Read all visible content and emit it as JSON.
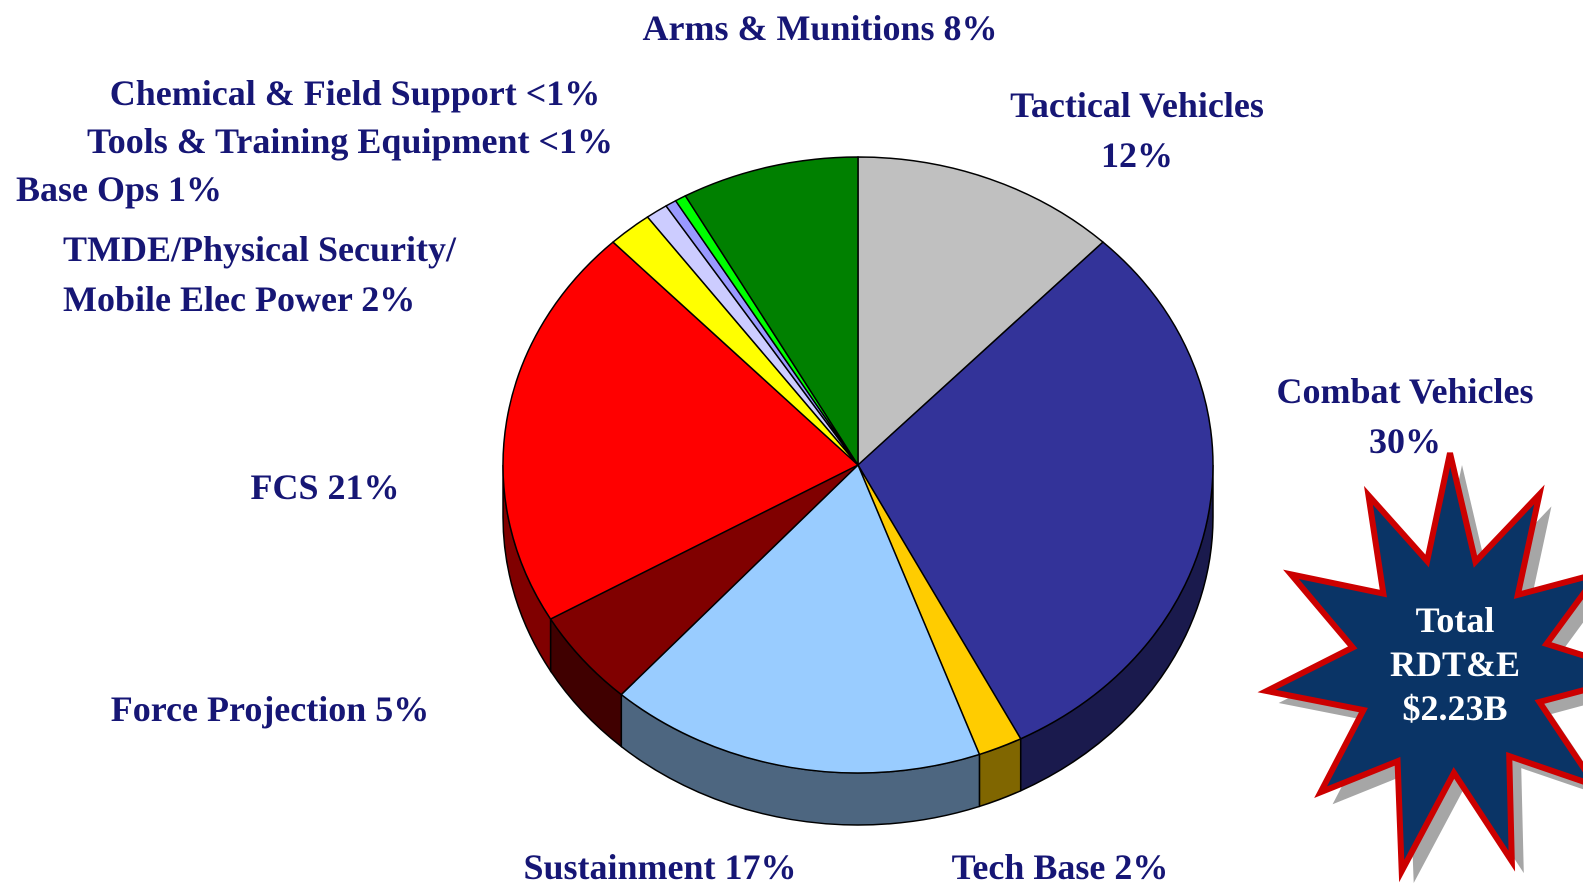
{
  "chart_data": {
    "type": "pie",
    "categories": [
      "Tactical Vehicles",
      "Combat Vehicles",
      "Tech Base",
      "Sustainment",
      "Force Projection",
      "FCS",
      "TMDE/Physical Security/ Mobile Elec Power",
      "Base Ops",
      "Tools & Training Equipment",
      "Chemical & Field Support",
      "Arms & Munitions"
    ],
    "values": [
      12,
      30,
      2,
      17,
      5,
      21,
      2,
      1,
      0.5,
      0.5,
      8
    ],
    "value_labels": [
      "12%",
      "30%",
      "2%",
      "17%",
      "5%",
      "21%",
      "2%",
      "1%",
      "<1%",
      "<1%",
      "8%"
    ],
    "colors": [
      "#c0c0c0",
      "#333399",
      "#ffcc00",
      "#99ccff",
      "#800000",
      "#ff0000",
      "#ffff00",
      "#ccccff",
      "#9999ff",
      "#00ff00",
      "#008000"
    ],
    "annotation": "Total RDT&E $2.23B"
  }
}
